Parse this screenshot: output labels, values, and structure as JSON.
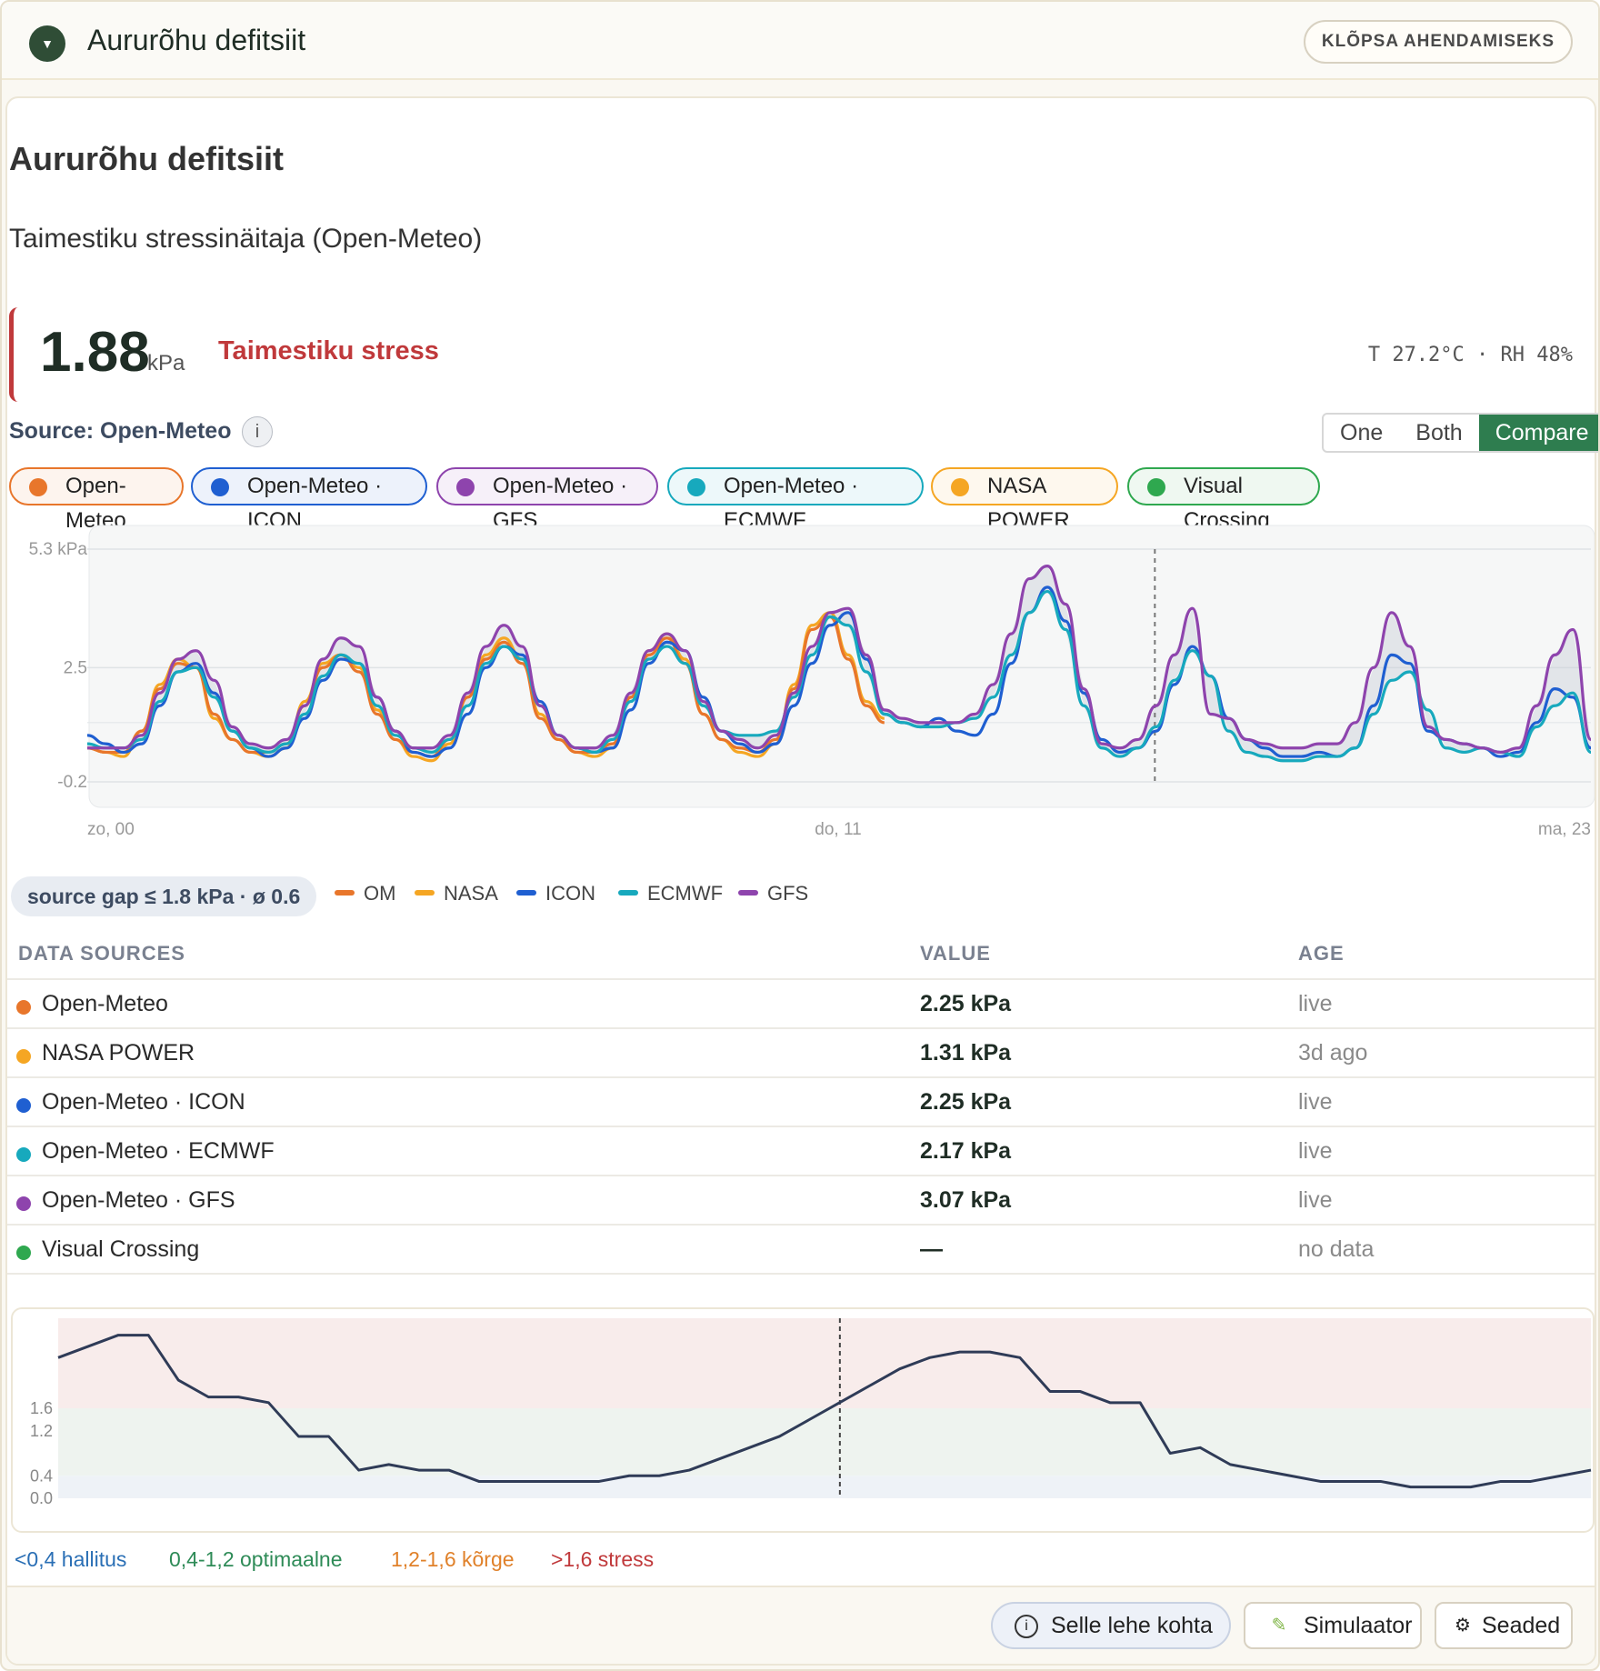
{
  "header": {
    "title": "Aururõhu defitsiit",
    "collapse_label": "KLÕPSA AHENDAMISEKS"
  },
  "card": {
    "title": "Aururõhu defitsiit",
    "subtitle": "Taimestiku stressinäitaja (Open-Meteo)",
    "value": "1.88",
    "unit": "kPa",
    "status": "Taimestiku stress",
    "conditions": "T 27.2°C · RH 48%",
    "source_label": "Source: Open-Meteo",
    "info_icon": "info-icon",
    "mode_options": [
      "One",
      "Both",
      "Compare"
    ],
    "mode_selected": "Compare"
  },
  "source_chips": [
    {
      "label": "Open-Meteo",
      "color": "#e8762b"
    },
    {
      "label": "Open-Meteo · ICON",
      "color": "#1f5fd1"
    },
    {
      "label": "Open-Meteo · GFS",
      "color": "#8e44ad"
    },
    {
      "label": "Open-Meteo · ECMWF",
      "color": "#17a9bd"
    },
    {
      "label": "NASA POWER",
      "color": "#f5a623"
    },
    {
      "label": "Visual Crossing",
      "color": "#2fa84f"
    }
  ],
  "chart_data": [
    {
      "type": "line",
      "ylim": [
        -0.2,
        5.3
      ],
      "y_ticks": [
        "5.3 kPa",
        "2.5",
        "-0.2"
      ],
      "x_ticks": [
        "zo, 00",
        "do, 11",
        "ma, 23"
      ],
      "series": [
        {
          "name": "NASA",
          "color": "#f5a623",
          "values": [
            0.6,
            0.5,
            0.4,
            1.0,
            2.1,
            2.7,
            2.5,
            1.3,
            0.8,
            0.5,
            0.4,
            0.6,
            1.7,
            2.6,
            2.8,
            2.5,
            1.5,
            0.8,
            0.4,
            0.3,
            0.7,
            1.8,
            2.8,
            3.2,
            2.7,
            1.4,
            0.8,
            0.5,
            0.4,
            0.6,
            1.8,
            2.9,
            3.3,
            2.7,
            1.4,
            0.8,
            0.5,
            0.4,
            0.7,
            2.1,
            3.5,
            3.8,
            2.8,
            1.7,
            1.3
          ]
        },
        {
          "name": "OM",
          "color": "#e8762b",
          "values": [
            0.6,
            0.5,
            0.5,
            1.0,
            2.0,
            2.6,
            2.5,
            1.4,
            0.8,
            0.5,
            0.5,
            0.7,
            1.6,
            2.5,
            2.8,
            2.4,
            1.4,
            0.8,
            0.5,
            0.4,
            0.8,
            1.8,
            2.7,
            3.1,
            2.6,
            1.3,
            0.8,
            0.5,
            0.5,
            0.7,
            1.8,
            2.8,
            3.2,
            2.6,
            1.4,
            0.8,
            0.6,
            0.5,
            0.8,
            2.0,
            3.4,
            3.7,
            2.7,
            1.6,
            1.2
          ]
        },
        {
          "name": "ICON",
          "color": "#1f5fd1",
          "values": [
            0.9,
            0.7,
            0.5,
            0.7,
            1.6,
            2.4,
            2.6,
            1.9,
            1.0,
            0.6,
            0.4,
            0.6,
            1.3,
            2.2,
            2.7,
            2.6,
            1.8,
            1.0,
            0.5,
            0.4,
            0.6,
            1.4,
            2.5,
            3.0,
            2.8,
            1.7,
            0.9,
            0.6,
            0.5,
            0.6,
            1.5,
            2.6,
            3.1,
            2.9,
            1.8,
            1.0,
            0.7,
            0.5,
            0.7,
            1.6,
            2.6,
            3.5,
            3.8,
            2.7,
            1.4,
            1.2,
            1.1,
            1.3,
            1.0,
            0.9,
            1.4,
            2.6,
            3.8,
            4.4,
            3.6,
            1.9,
            0.8,
            0.5,
            0.6,
            1.0,
            2.1,
            3.0,
            2.3,
            1.3,
            0.8,
            0.6,
            0.4,
            0.4,
            0.5,
            0.4,
            0.6,
            1.6,
            2.8,
            2.6,
            1.0,
            0.8,
            0.7,
            0.6,
            0.4,
            0.5,
            1.2,
            2.0,
            1.8,
            0.6
          ]
        },
        {
          "name": "ECMWF",
          "color": "#17a9bd",
          "values": [
            0.7,
            0.6,
            0.6,
            0.8,
            1.7,
            2.4,
            2.5,
            1.8,
            1.0,
            0.6,
            0.5,
            0.7,
            1.4,
            2.3,
            2.8,
            2.6,
            1.6,
            0.9,
            0.6,
            0.5,
            0.8,
            1.6,
            2.6,
            3.0,
            2.7,
            1.6,
            0.9,
            0.6,
            0.5,
            0.8,
            1.7,
            2.7,
            3.0,
            2.6,
            1.6,
            1.0,
            0.9,
            0.9,
            1.0,
            1.8,
            2.8,
            3.7,
            3.5,
            2.4,
            1.4,
            1.2,
            1.1,
            1.1,
            1.2,
            1.3,
            1.8,
            2.8,
            3.8,
            4.3,
            3.4,
            1.6,
            0.6,
            0.4,
            0.6,
            1.1,
            2.2,
            2.9,
            2.3,
            1.0,
            0.5,
            0.4,
            0.3,
            0.3,
            0.4,
            0.4,
            0.6,
            1.4,
            2.2,
            2.4,
            1.5,
            0.6,
            0.5,
            0.6,
            0.5,
            0.4,
            1.1,
            1.6,
            1.9,
            0.5
          ]
        },
        {
          "name": "GFS",
          "color": "#8e44ad",
          "values": [
            0.6,
            0.6,
            0.6,
            0.9,
            1.9,
            2.7,
            2.9,
            2.2,
            1.1,
            0.7,
            0.6,
            0.8,
            1.6,
            2.7,
            3.2,
            3.0,
            1.8,
            1.0,
            0.6,
            0.6,
            0.9,
            1.9,
            3.0,
            3.5,
            3.0,
            1.6,
            0.9,
            0.6,
            0.6,
            0.9,
            1.9,
            2.9,
            3.3,
            2.9,
            1.7,
            1.0,
            0.8,
            0.6,
            0.9,
            1.9,
            3.0,
            3.8,
            3.9,
            2.8,
            1.5,
            1.3,
            1.2,
            1.2,
            1.2,
            1.4,
            2.1,
            3.3,
            4.6,
            4.9,
            4.0,
            2.0,
            0.7,
            0.6,
            0.8,
            1.6,
            2.8,
            3.9,
            1.4,
            1.3,
            0.8,
            0.7,
            0.6,
            0.6,
            0.7,
            0.7,
            1.2,
            2.5,
            3.8,
            3.0,
            1.1,
            0.8,
            0.7,
            0.6,
            0.5,
            0.6,
            1.6,
            2.8,
            3.4,
            0.8
          ]
        }
      ],
      "now_marker": true
    },
    {
      "type": "line",
      "y_ticks": [
        "1.6",
        "1.2",
        "0.4",
        "0.0"
      ],
      "series": [
        {
          "name": "VPD",
          "color": "#2f3b57",
          "values": [
            2.5,
            2.7,
            2.9,
            2.9,
            2.1,
            1.8,
            1.8,
            1.7,
            1.1,
            1.1,
            0.5,
            0.6,
            0.5,
            0.5,
            0.3,
            0.3,
            0.3,
            0.3,
            0.3,
            0.4,
            0.4,
            0.5,
            0.7,
            0.9,
            1.1,
            1.4,
            1.7,
            2.0,
            2.3,
            2.5,
            2.6,
            2.6,
            2.5,
            1.9,
            1.9,
            1.7,
            1.7,
            0.8,
            0.9,
            0.6,
            0.5,
            0.4,
            0.3,
            0.3,
            0.3,
            0.2,
            0.2,
            0.2,
            0.3,
            0.3,
            0.4,
            0.5
          ]
        }
      ],
      "bands": [
        {
          "from": 1.6,
          "to": 3.2,
          "color": "#f8eceb"
        },
        {
          "from": 0.4,
          "to": 1.6,
          "color": "#eef3ef"
        },
        {
          "from": 0.0,
          "to": 0.4,
          "color": "#eef2f7"
        }
      ]
    }
  ],
  "gap_note": "source gap ≤ 1.8 kPa · ø 0.6",
  "mini_legend": [
    {
      "label": "OM",
      "color": "#e8762b"
    },
    {
      "label": "NASA",
      "color": "#f5a623"
    },
    {
      "label": "ICON",
      "color": "#1f5fd1"
    },
    {
      "label": "ECMWF",
      "color": "#17a9bd"
    },
    {
      "label": "GFS",
      "color": "#8e44ad"
    }
  ],
  "table": {
    "headers": [
      "DATA SOURCES",
      "VALUE",
      "AGE"
    ],
    "rows": [
      {
        "source": "Open-Meteo",
        "value": "2.25 kPa",
        "age": "live",
        "color": "#e8762b"
      },
      {
        "source": "NASA POWER",
        "value": "1.31 kPa",
        "age": "3d ago",
        "color": "#f5a623"
      },
      {
        "source": "Open-Meteo · ICON",
        "value": "2.25 kPa",
        "age": "live",
        "color": "#1f5fd1"
      },
      {
        "source": "Open-Meteo · ECMWF",
        "value": "2.17 kPa",
        "age": "live",
        "color": "#17a9bd"
      },
      {
        "source": "Open-Meteo · GFS",
        "value": "3.07 kPa",
        "age": "live",
        "color": "#8e44ad"
      },
      {
        "source": "Visual Crossing",
        "value": "—",
        "age": "no data",
        "color": "#2fa84f"
      }
    ]
  },
  "band_legend": [
    {
      "label": "<0,4 hallitus",
      "color": "#2a6fb5"
    },
    {
      "label": "0,4-1,2 optimaalne",
      "color": "#2e8b57"
    },
    {
      "label": "1,2-1,6 kõrge",
      "color": "#e0812a"
    },
    {
      "label": ">1,6 stress",
      "color": "#c0393b"
    }
  ],
  "footer": {
    "about_label": "Selle lehe kohta",
    "simulator_label": "Simulaator",
    "settings_label": "Seaded"
  }
}
